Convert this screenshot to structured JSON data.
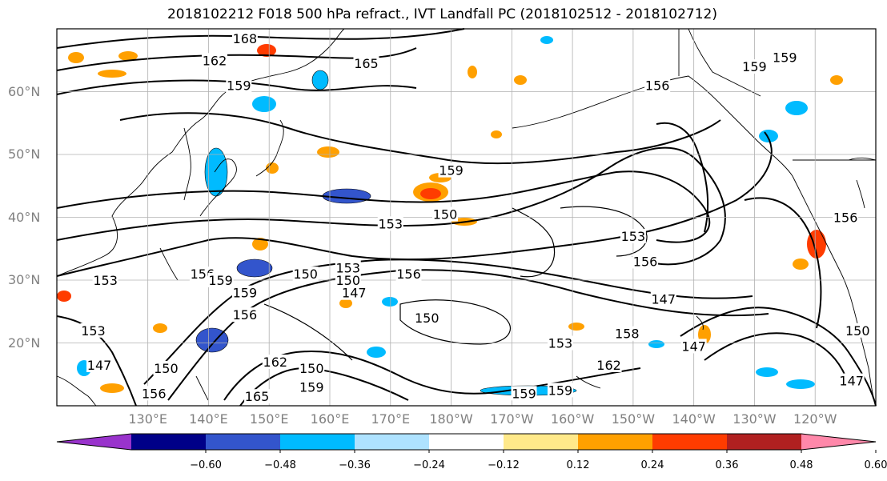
{
  "title": "2018102212 F018 500 hPa refract., IVT Landfall PC (2018102512 - 2018102712)",
  "map": {
    "projection": "plate-carree",
    "lon_range": [
      115,
      250
    ],
    "lat_range": [
      10,
      70
    ],
    "lat_ticks": [
      {
        "lat": 60,
        "label": "60°N"
      },
      {
        "lat": 50,
        "label": "50°N"
      },
      {
        "lat": 40,
        "label": "40°N"
      },
      {
        "lat": 30,
        "label": "30°N"
      },
      {
        "lat": 20,
        "label": "20°N"
      }
    ],
    "lon_ticks": [
      {
        "lon": 130,
        "label": "130°E"
      },
      {
        "lon": 140,
        "label": "140°E"
      },
      {
        "lon": 150,
        "label": "150°E"
      },
      {
        "lon": 160,
        "label": "160°E"
      },
      {
        "lon": 170,
        "label": "170°E"
      },
      {
        "lon": 180,
        "label": "180°W"
      },
      {
        "lon": 190,
        "label": "170°W"
      },
      {
        "lon": 200,
        "label": "160°W"
      },
      {
        "lon": 210,
        "label": "150°W"
      },
      {
        "lon": 220,
        "label": "140°W"
      },
      {
        "lon": 230,
        "label": "130°W"
      },
      {
        "lon": 240,
        "label": "120°W"
      }
    ],
    "grid": true
  },
  "contour_labels": [
    {
      "text": "168",
      "lon": 146,
      "lat": 68.5
    },
    {
      "text": "162",
      "lon": 141,
      "lat": 65
    },
    {
      "text": "165",
      "lon": 166,
      "lat": 64.5
    },
    {
      "text": "159",
      "lon": 145,
      "lat": 61
    },
    {
      "text": "159",
      "lon": 180,
      "lat": 47.5
    },
    {
      "text": "153",
      "lon": 170,
      "lat": 39
    },
    {
      "text": "150",
      "lon": 179,
      "lat": 40.5
    },
    {
      "text": "153",
      "lon": 163,
      "lat": 32
    },
    {
      "text": "150",
      "lon": 156,
      "lat": 31
    },
    {
      "text": "156",
      "lon": 173,
      "lat": 31
    },
    {
      "text": "150",
      "lon": 163,
      "lat": 30
    },
    {
      "text": "147",
      "lon": 164,
      "lat": 28
    },
    {
      "text": "156",
      "lon": 139,
      "lat": 31
    },
    {
      "text": "159",
      "lon": 142,
      "lat": 30
    },
    {
      "text": "159",
      "lon": 146,
      "lat": 28
    },
    {
      "text": "156",
      "lon": 146,
      "lat": 24.5
    },
    {
      "text": "150",
      "lon": 176,
      "lat": 24
    },
    {
      "text": "153",
      "lon": 123,
      "lat": 30
    },
    {
      "text": "153",
      "lon": 121,
      "lat": 22
    },
    {
      "text": "147",
      "lon": 122,
      "lat": 16.5
    },
    {
      "text": "150",
      "lon": 133,
      "lat": 16
    },
    {
      "text": "156",
      "lon": 131,
      "lat": 12
    },
    {
      "text": "162",
      "lon": 151,
      "lat": 17
    },
    {
      "text": "150",
      "lon": 157,
      "lat": 16
    },
    {
      "text": "165",
      "lon": 148,
      "lat": 11.5
    },
    {
      "text": "159",
      "lon": 157,
      "lat": 13
    },
    {
      "text": "159",
      "lon": 192,
      "lat": 12
    },
    {
      "text": "159",
      "lon": 198,
      "lat": 12.5
    },
    {
      "text": "162",
      "lon": 206,
      "lat": 16.5
    },
    {
      "text": "153",
      "lon": 198,
      "lat": 20
    },
    {
      "text": "158",
      "lon": 209,
      "lat": 21.5
    },
    {
      "text": "147",
      "lon": 215,
      "lat": 27
    },
    {
      "text": "147",
      "lon": 220,
      "lat": 19.5
    },
    {
      "text": "153",
      "lon": 210,
      "lat": 37
    },
    {
      "text": "156",
      "lon": 212,
      "lat": 33
    },
    {
      "text": "156",
      "lon": 214,
      "lat": 61
    },
    {
      "text": "159",
      "lon": 230,
      "lat": 64
    },
    {
      "text": "159",
      "lon": 235,
      "lat": 65.5
    },
    {
      "text": "156",
      "lon": 245,
      "lat": 40
    },
    {
      "text": "150",
      "lon": 247,
      "lat": 22
    },
    {
      "text": "147",
      "lon": 246,
      "lat": 14
    }
  ],
  "colorbar": {
    "boundaries": [
      -0.72,
      -0.6,
      -0.48,
      -0.36,
      -0.24,
      -0.12,
      0.12,
      0.24,
      0.36,
      0.48,
      0.6,
      0.72
    ],
    "colors": [
      "#9933cc",
      "#000088",
      "#3355cc",
      "#00bbff",
      "#aee2ff",
      "#ffffff",
      "#ffe98a",
      "#ffa000",
      "#ff3c00",
      "#b02020",
      "#ff88aa"
    ],
    "tick_labels": [
      "−0.60",
      "−0.48",
      "−0.36",
      "−0.24",
      "−0.12",
      "0.12",
      "0.24",
      "0.36",
      "0.48",
      "0.60"
    ],
    "extend": "both"
  }
}
